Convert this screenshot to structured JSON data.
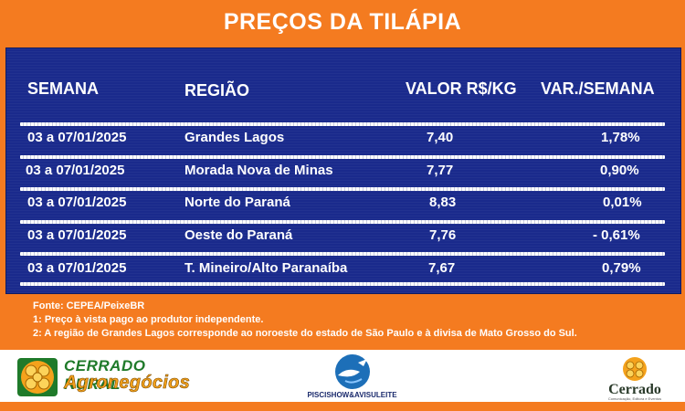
{
  "title": "PREÇOS DA TILÁPIA",
  "headers": {
    "week": "SEMANA",
    "region": "REGIÃO",
    "value": "VALOR R$/KG",
    "variation": "VAR./SEMANA"
  },
  "rows": [
    {
      "week": "03 a 07/01/2025",
      "region": "Grandes Lagos",
      "value": "7,40",
      "variation": "1,78%"
    },
    {
      "week": "03 a 07/01/2025",
      "region": "Morada Nova de Minas",
      "value": "7,77",
      "variation": "0,90%"
    },
    {
      "week": "03 a 07/01/2025",
      "region": "Norte do Paraná",
      "value": "8,83",
      "variation": "0,01%"
    },
    {
      "week": "03 a 07/01/2025",
      "region": "Oeste do Paraná",
      "value": "7,76",
      "variation": "- 0,61%"
    },
    {
      "week": "03 a 07/01/2025",
      "region": "T. Mineiro/Alto Paranaíba",
      "value": "7,67",
      "variation": "0,79%"
    }
  ],
  "notes": {
    "source": "Fonte: CEPEA/PeixeBR",
    "note1": "1: Preço à vista pago ao produtor independente.",
    "note2": "2: A região de Grandes Lagos corresponde ao noroeste do estado de São Paulo e à divisa de Mato Grosso do Sul."
  },
  "logos": {
    "left_line1": "CERRADO RURAL",
    "left_line2": "Agronegócios",
    "middle": "PISCISHOW&AVISULEITE",
    "right": "Cerrado",
    "right_sub": "Comunicação, Editora e Eventos"
  },
  "colors": {
    "orange": "#f47b20",
    "navy": "#1a2a8c",
    "white": "#ffffff"
  }
}
